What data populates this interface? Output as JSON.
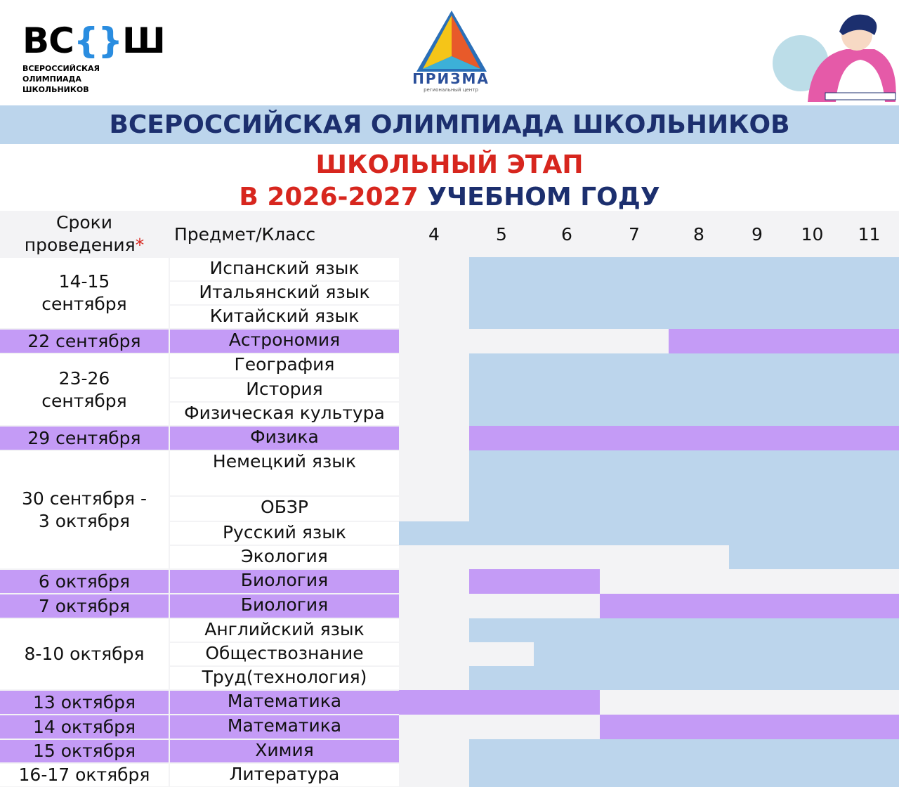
{
  "header": {
    "logo": {
      "left": "ВС",
      "braces": "{}",
      "right": "Ш",
      "caption": [
        "ВСЕРОССИЙСКАЯ",
        "ОЛИМПИАДА",
        "ШКОЛЬНИКОВ"
      ]
    },
    "prizma": {
      "name": "ПРИЗМА",
      "caption": "региональный центр"
    }
  },
  "banner": "ВСЕРОССИЙСКАЯ ОЛИМПИАДА ШКОЛЬНИКОВ",
  "subtitle": {
    "line1": "ШКОЛЬНЫЙ ЭТАП",
    "line2_red": "В 2026-2027",
    "line2_navy": "УЧЕБНОМ ГОДУ"
  },
  "table": {
    "head": {
      "dates": "Сроки проведения",
      "asterisk": "*",
      "subject": "Предмет/Класс",
      "grades": [
        4,
        5,
        6,
        7,
        8,
        9,
        10,
        11
      ]
    },
    "groups": [
      {
        "date": "14-15 сентября",
        "highlight": false,
        "rows": [
          {
            "subject": "Испанский язык",
            "grades": [
              5,
              11
            ],
            "color": "#bcd5ec"
          },
          {
            "subject": "Итальянский язык",
            "grades": [
              5,
              11
            ],
            "color": "#bcd5ec"
          },
          {
            "subject": "Китайский язык",
            "grades": [
              5,
              11
            ],
            "color": "#bcd5ec"
          }
        ]
      },
      {
        "date": "22 сентября",
        "highlight": true,
        "rows": [
          {
            "subject": "Астрономия",
            "grades": [
              8,
              11
            ],
            "color": "#c49bf6"
          }
        ]
      },
      {
        "date": "23-26 сентября",
        "highlight": false,
        "rows": [
          {
            "subject": "География",
            "grades": [
              5,
              11
            ],
            "color": "#bcd5ec"
          },
          {
            "subject": "История",
            "grades": [
              5,
              11
            ],
            "color": "#bcd5ec"
          },
          {
            "subject": "Физическая культура",
            "grades": [
              5,
              11
            ],
            "color": "#bcd5ec"
          }
        ]
      },
      {
        "date": "29 сентября",
        "highlight": true,
        "rows": [
          {
            "subject": "Физика",
            "grades": [
              5,
              11
            ],
            "color": "#c49bf6"
          }
        ]
      },
      {
        "date": "30 сентября - 3 октября",
        "highlight": false,
        "rows": [
          {
            "subject": "Немецкий язык",
            "grades": [
              5,
              11
            ],
            "color": "#bcd5ec"
          },
          {
            "subject": "ОБЗР",
            "grades": [
              5,
              11
            ],
            "color": "#bcd5ec"
          },
          {
            "subject": "Русский язык",
            "grades": [
              4,
              11
            ],
            "color": "#bcd5ec"
          },
          {
            "subject": "Экология",
            "grades": [
              9,
              11
            ],
            "color": "#bcd5ec"
          }
        ]
      },
      {
        "date": "6 октября",
        "highlight": true,
        "rows": [
          {
            "subject": "Биология",
            "grades": [
              5,
              6
            ],
            "color": "#c49bf6"
          }
        ]
      },
      {
        "date": "7 октября",
        "highlight": true,
        "rows": [
          {
            "subject": "Биология",
            "grades": [
              7,
              11
            ],
            "color": "#c49bf6"
          }
        ]
      },
      {
        "date": "8-10 октября",
        "highlight": false,
        "rows": [
          {
            "subject": "Английский язык",
            "grades": [
              5,
              11
            ],
            "color": "#bcd5ec"
          },
          {
            "subject": "Обществознание",
            "grades": [
              6,
              11
            ],
            "color": "#bcd5ec"
          },
          {
            "subject": "Труд(технология)",
            "grades": [
              5,
              11
            ],
            "color": "#bcd5ec"
          }
        ]
      },
      {
        "date": "13 октября",
        "highlight": true,
        "rows": [
          {
            "subject": "Математика",
            "grades": [
              4,
              6
            ],
            "color": "#c49bf6"
          }
        ]
      },
      {
        "date": "14 октября",
        "highlight": true,
        "rows": [
          {
            "subject": "Математика",
            "grades": [
              7,
              11
            ],
            "color": "#c49bf6"
          }
        ]
      },
      {
        "date": "15 октября",
        "highlight": true,
        "rows": [
          {
            "subject": "Химия",
            "grades": [
              5,
              11
            ],
            "color": "#bcd5ec"
          }
        ]
      },
      {
        "date": "16-17 октября",
        "highlight": false,
        "rows": [
          {
            "subject": "Литература",
            "grades": [
              5,
              11
            ],
            "color": "#bcd5ec"
          }
        ]
      }
    ]
  }
}
